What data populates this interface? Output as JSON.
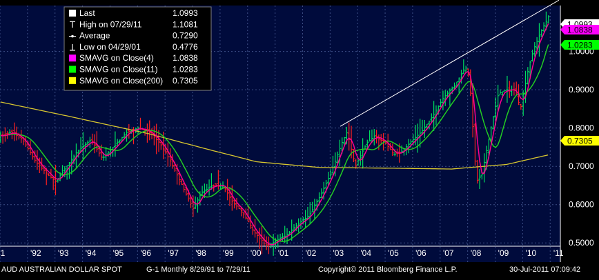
{
  "chart_data": {
    "type": "line",
    "title": "",
    "xlabel": "",
    "ylabel": "",
    "ylim": [
      0.45,
      1.12
    ],
    "yticks": [
      "0.5000",
      "0.6000",
      "0.7000",
      "0.8000",
      "0.9000",
      "1.0000"
    ],
    "xticks": [
      "1",
      "'92",
      "'93",
      "'94",
      "'95",
      "'96",
      "'97",
      "'98",
      "'99",
      "'00",
      "'01",
      "'02",
      "'03",
      "'04",
      "'05",
      "'06",
      "'07",
      "'08",
      "'09",
      "'10",
      "'11"
    ],
    "grid": true,
    "legend_position": "top-left",
    "legend": [
      {
        "label": "Last",
        "value": "1.0993",
        "symbol": "white-square"
      },
      {
        "label": "High on 07/29/11",
        "value": "1.1081",
        "symbol": "high-marker"
      },
      {
        "label": "Average",
        "value": "0.7290",
        "symbol": "average-marker"
      },
      {
        "label": "Low on 04/29/01",
        "value": "0.4776",
        "symbol": "low-marker"
      },
      {
        "label": "SMAVG on Close(4)",
        "value": "1.0838",
        "symbol": "magenta-square"
      },
      {
        "label": "SMAVG on Close(11)",
        "value": "1.0283",
        "symbol": "green-square"
      },
      {
        "label": "SMAVG on Close(200)",
        "value": "0.7305",
        "symbol": "yellow-square"
      }
    ],
    "value_tags": [
      {
        "text": "1.0993",
        "y": 1.0993,
        "color": "#ffffff",
        "text_color": "#000000"
      },
      {
        "text": "1.0838",
        "y": 1.0838,
        "color": "#ff00ff",
        "text_color": "#000000"
      },
      {
        "text": "1.0283",
        "y": 1.0283,
        "color": "#00ff00",
        "text_color": "#000000"
      },
      {
        "text": "0.7305",
        "y": 0.7305,
        "color": "#ffff00",
        "text_color": "#000000"
      }
    ],
    "price_anchors": [
      [
        1991.7,
        0.78
      ],
      [
        1992.0,
        0.79
      ],
      [
        1992.4,
        0.77
      ],
      [
        1992.9,
        0.71
      ],
      [
        1993.3,
        0.68
      ],
      [
        1993.6,
        0.66
      ],
      [
        1994.0,
        0.7
      ],
      [
        1994.4,
        0.74
      ],
      [
        1994.9,
        0.77
      ],
      [
        1995.3,
        0.72
      ],
      [
        1995.7,
        0.75
      ],
      [
        1996.2,
        0.79
      ],
      [
        1996.6,
        0.8
      ],
      [
        1997.0,
        0.79
      ],
      [
        1997.4,
        0.76
      ],
      [
        1997.8,
        0.71
      ],
      [
        1998.2,
        0.65
      ],
      [
        1998.6,
        0.59
      ],
      [
        1998.9,
        0.63
      ],
      [
        1999.3,
        0.65
      ],
      [
        1999.7,
        0.65
      ],
      [
        2000.0,
        0.61
      ],
      [
        2000.4,
        0.58
      ],
      [
        2000.8,
        0.53
      ],
      [
        2001.3,
        0.49
      ],
      [
        2001.7,
        0.51
      ],
      [
        2002.0,
        0.52
      ],
      [
        2002.4,
        0.55
      ],
      [
        2002.8,
        0.57
      ],
      [
        2003.2,
        0.62
      ],
      [
        2003.6,
        0.68
      ],
      [
        2004.0,
        0.76
      ],
      [
        2004.2,
        0.79
      ],
      [
        2004.5,
        0.7
      ],
      [
        2004.9,
        0.76
      ],
      [
        2005.2,
        0.78
      ],
      [
        2005.6,
        0.76
      ],
      [
        2005.9,
        0.73
      ],
      [
        2006.2,
        0.74
      ],
      [
        2006.6,
        0.77
      ],
      [
        2006.9,
        0.79
      ],
      [
        2007.3,
        0.83
      ],
      [
        2007.7,
        0.88
      ],
      [
        2008.1,
        0.91
      ],
      [
        2008.5,
        0.96
      ],
      [
        2008.65,
        0.93
      ],
      [
        2008.9,
        0.66
      ],
      [
        2009.1,
        0.68
      ],
      [
        2009.4,
        0.79
      ],
      [
        2009.7,
        0.89
      ],
      [
        2010.0,
        0.9
      ],
      [
        2010.3,
        0.9
      ],
      [
        2010.5,
        0.85
      ],
      [
        2010.8,
        0.96
      ],
      [
        2011.0,
        1.01
      ],
      [
        2011.3,
        1.06
      ],
      [
        2011.58,
        1.0993
      ]
    ],
    "series": [
      {
        "name": "SMAVG on Close(4)",
        "color": "#ff0090",
        "values": []
      },
      {
        "name": "SMAVG on Close(11)",
        "color": "#22cc22",
        "values": []
      },
      {
        "name": "SMAVG on Close(200)",
        "color": "#d8c830",
        "anchors": [
          [
            1991.6,
            0.868
          ],
          [
            1994.0,
            0.832
          ],
          [
            1997.0,
            0.785
          ],
          [
            1999.0,
            0.747
          ],
          [
            2000.9,
            0.712
          ],
          [
            2003.2,
            0.697
          ],
          [
            2006.0,
            0.695
          ],
          [
            2008.0,
            0.693
          ],
          [
            2010.0,
            0.705
          ],
          [
            2011.58,
            0.731
          ]
        ]
      }
    ],
    "trendline": [
      [
        2003.95,
        0.8045
      ],
      [
        2011.9,
        1.134
      ]
    ],
    "footer": {
      "left": "AUD  AUSTRALIAN DOLLAR SPOT",
      "period": "G-1   Monthly  8/29/91 to 7/29/11",
      "copyright": "Copyright© 2011 Bloomberg Finance L.P.",
      "timestamp": "30-Jul-2011 07:09:42"
    }
  }
}
